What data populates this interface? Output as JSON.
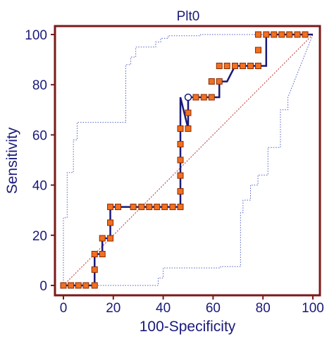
{
  "chart_data": {
    "type": "line",
    "title": "Plt0",
    "xlabel": "100-Specificity",
    "ylabel": "Sensitivity",
    "xlim": [
      0,
      100
    ],
    "ylim": [
      0,
      100
    ],
    "xticks": [
      "0",
      "20",
      "40",
      "60",
      "80",
      "100"
    ],
    "yticks": [
      "0",
      "20",
      "40",
      "60",
      "80",
      "100"
    ],
    "grid": false,
    "colors": {
      "frame": "#7a1a1a",
      "text": "#1a1a7a",
      "roc_line": "#1a1a7a",
      "marker_fill": "#f07020",
      "marker_edge": "#8a2a00",
      "confidence_band": "#5060c0",
      "diagonal": "#c03030"
    },
    "series": [
      {
        "role": "roc_curve",
        "x": [
          0,
          0,
          3,
          6,
          9,
          12.5,
          12.5,
          12.5,
          15.6,
          15.6,
          18.8,
          18.8,
          18.8,
          21.9,
          25,
          31.3,
          34.4,
          37.5,
          40.6,
          43.8,
          46.9,
          46.9,
          46.9,
          46.9,
          46.9,
          46.9,
          46.9,
          46.9,
          50,
          50,
          50,
          53.1,
          56.3,
          59.4,
          62.5,
          62.5,
          65.6,
          68.8,
          71.9,
          75,
          78.1,
          81.3,
          81.3,
          81.3,
          84.4,
          87.5,
          90.6,
          93.8,
          96.9,
          100
        ],
        "y": [
          0,
          0,
          0,
          0,
          0,
          0,
          6.3,
          12.5,
          12.5,
          18.8,
          18.8,
          25,
          31.3,
          31.3,
          31.3,
          31.3,
          31.3,
          31.3,
          31.3,
          31.3,
          31.3,
          37.5,
          43.8,
          50,
          56.3,
          62.5,
          68.8,
          75,
          62.5,
          68.8,
          75,
          75,
          75,
          75,
          75,
          81.3,
          81.3,
          87.5,
          87.5,
          87.5,
          87.5,
          87.5,
          93.8,
          100,
          100,
          100,
          100,
          100,
          100,
          100
        ],
        "markers": [
          [
            0,
            0
          ],
          [
            3,
            0
          ],
          [
            6,
            0
          ],
          [
            9,
            0
          ],
          [
            12.5,
            0
          ],
          [
            12.5,
            6.3
          ],
          [
            12.5,
            12.5
          ],
          [
            15.6,
            12.5
          ],
          [
            15.6,
            18.8
          ],
          [
            18.8,
            18.8
          ],
          [
            18.8,
            25
          ],
          [
            18.8,
            31.3
          ],
          [
            21.9,
            31.3
          ],
          [
            28,
            31.3
          ],
          [
            31.3,
            31.3
          ],
          [
            34.4,
            31.3
          ],
          [
            37.5,
            31.3
          ],
          [
            40.6,
            31.3
          ],
          [
            43.8,
            31.3
          ],
          [
            46.9,
            31.3
          ],
          [
            46.9,
            37.5
          ],
          [
            46.9,
            43.8
          ],
          [
            46.9,
            50
          ],
          [
            46.9,
            56.3
          ],
          [
            46.9,
            62.5
          ],
          [
            50,
            62.5
          ],
          [
            50,
            68.8
          ],
          [
            53.1,
            75
          ],
          [
            56.3,
            75
          ],
          [
            59.4,
            75
          ],
          [
            59.4,
            81.3
          ],
          [
            62.5,
            81.3
          ],
          [
            62.5,
            87.5
          ],
          [
            65.6,
            87.5
          ],
          [
            68.8,
            87.5
          ],
          [
            71.9,
            87.5
          ],
          [
            75,
            87.5
          ],
          [
            78.1,
            87.5
          ],
          [
            78.1,
            93.8
          ],
          [
            78.1,
            100
          ],
          [
            81.3,
            100
          ],
          [
            84.4,
            100
          ],
          [
            87.5,
            100
          ],
          [
            90.6,
            100
          ],
          [
            93.8,
            100
          ],
          [
            96.9,
            100
          ]
        ],
        "open_marker": [
          50,
          75
        ]
      },
      {
        "role": "upper_confidence_band",
        "x": [
          0,
          0,
          1.5,
          1.5,
          4,
          4,
          5.5,
          5.5,
          25,
          25,
          27,
          27,
          29,
          29,
          37,
          37,
          39,
          39,
          42,
          42,
          55,
          55,
          86,
          86,
          88,
          88,
          100
        ],
        "y": [
          0,
          27,
          27,
          45,
          45,
          58,
          58,
          65,
          65,
          88,
          88,
          91,
          91,
          95,
          95,
          97,
          97,
          98.5,
          98.5,
          99.5,
          99.5,
          100,
          100,
          100,
          100,
          100,
          100
        ]
      },
      {
        "role": "lower_confidence_band",
        "x": [
          0,
          38,
          38,
          40,
          40,
          63,
          63,
          71,
          71,
          72,
          72,
          75,
          75,
          78,
          78,
          82,
          82,
          87,
          87,
          90,
          90,
          100
        ],
        "y": [
          0,
          0,
          3,
          3,
          7,
          7,
          7.5,
          7.5,
          29,
          29,
          34,
          34,
          40,
          40,
          44,
          44,
          55,
          55,
          70,
          70,
          75,
          100
        ]
      },
      {
        "role": "reference_diagonal",
        "x": [
          0,
          100
        ],
        "y": [
          0,
          100
        ]
      }
    ]
  }
}
